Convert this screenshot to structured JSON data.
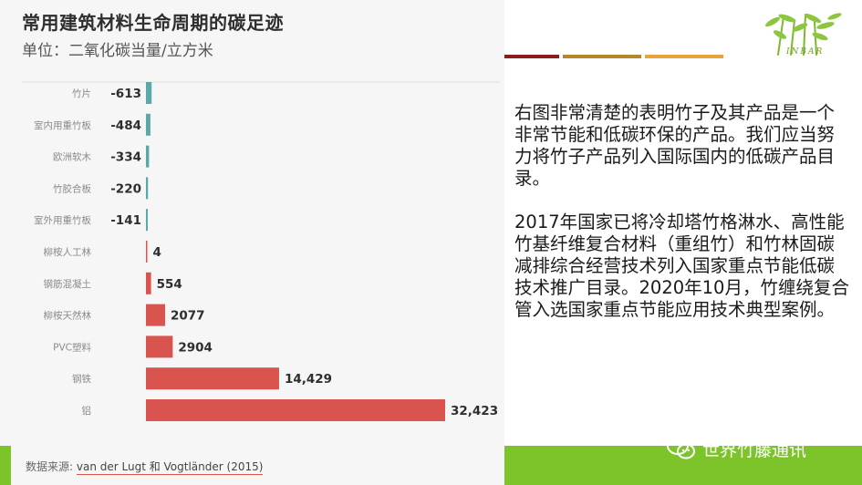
{
  "title": "常用建筑材料生命周期的碳足迹",
  "subtitle": "单位：二氧化碳当量/立方米",
  "source": {
    "label": "数据来源:",
    "value": "van der Lugt 和 Vogtländer (2015)"
  },
  "chart_data": {
    "type": "bar",
    "orientation": "horizontal",
    "title": "常用建筑材料生命周期的碳足迹",
    "subtitle": "单位：二氧化碳当量/立方米",
    "categories": [
      "竹片",
      "室内用重竹板",
      "欧洲软木",
      "竹胶合板",
      "室外用重竹板",
      "柳桉人工林",
      "钢筋混凝土",
      "柳桉天然林",
      "PVC塑料",
      "钢铁",
      "铝"
    ],
    "values": [
      -613,
      -484,
      -334,
      -220,
      -141,
      4,
      554,
      2077,
      2904,
      14429,
      32423
    ],
    "value_labels": [
      "-613",
      "-484",
      "-334",
      "-220",
      "-141",
      "4",
      "554",
      "2077",
      "2904",
      "14,429",
      "32,423"
    ],
    "xlim": [
      -613,
      32423
    ],
    "grid": false,
    "colors": {
      "negative": "#5aa8a8",
      "positive": "#d9534f"
    }
  },
  "body_text": {
    "paragraph1": "右图非常清楚的表明竹子及其产品是一个非常节能和低碳环保的产品。我们应当努力将竹子产品列入国际国内的低碳产品目录。",
    "paragraph2": "2017年国家已将冷却塔竹格淋水、高性能竹基纤维复合材料（重组竹）和竹林固碳减排综合经营技术列入国家重点节能低碳技术推广目录。2020年10月，竹缠绕复合管入选国家重点节能应用技术典型案例。"
  },
  "logo": {
    "text": "INBAR",
    "icon": "bamboo-logo-icon"
  },
  "watermark": {
    "text": "世界竹藤通讯",
    "icon": "wechat-icon"
  },
  "colors": {
    "panel_bg": "#f6f6f6",
    "accent_1": "#8b1c1c",
    "accent_2": "#b8862a",
    "accent_3": "#e8a33a",
    "green_bar": "#7cc42a"
  }
}
